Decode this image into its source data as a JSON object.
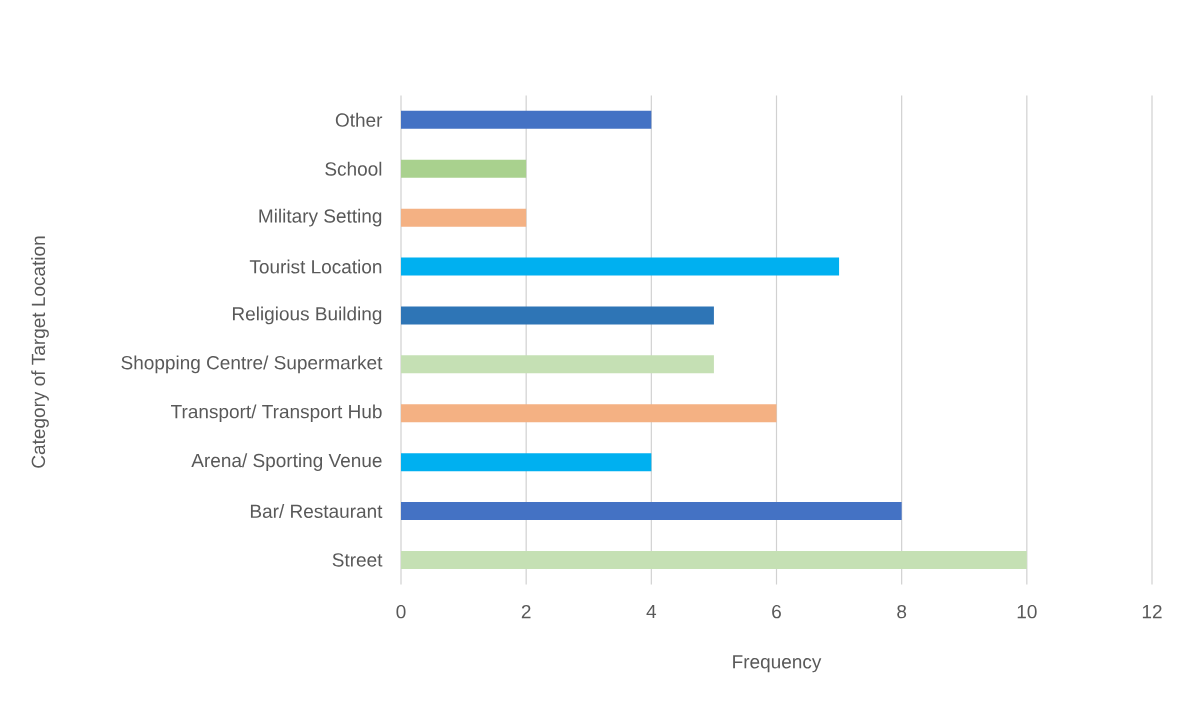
{
  "chart_data": {
    "type": "bar",
    "orientation": "horizontal",
    "xlabel": "Frequency",
    "ylabel": "Category of Target Location",
    "categories": [
      "Other",
      "School",
      "Military Setting",
      "Tourist Location",
      "Religious Building",
      "Shopping Centre/ Supermarket",
      "Transport/ Transport Hub",
      "Arena/ Sporting Venue",
      "Bar/ Restaurant",
      "Street"
    ],
    "values": [
      4,
      2,
      2,
      7,
      5,
      5,
      6,
      4,
      8,
      10
    ],
    "colors": [
      "#4472c4",
      "#a9d18e",
      "#f4b183",
      "#00b0f0",
      "#2e75b6",
      "#c5e0b4",
      "#f4b183",
      "#00b0f0",
      "#4472c4",
      "#c5e0b4"
    ],
    "xlim": [
      0,
      12
    ],
    "xticks": [
      0,
      2,
      4,
      6,
      8,
      10,
      12
    ],
    "grid": "x"
  }
}
